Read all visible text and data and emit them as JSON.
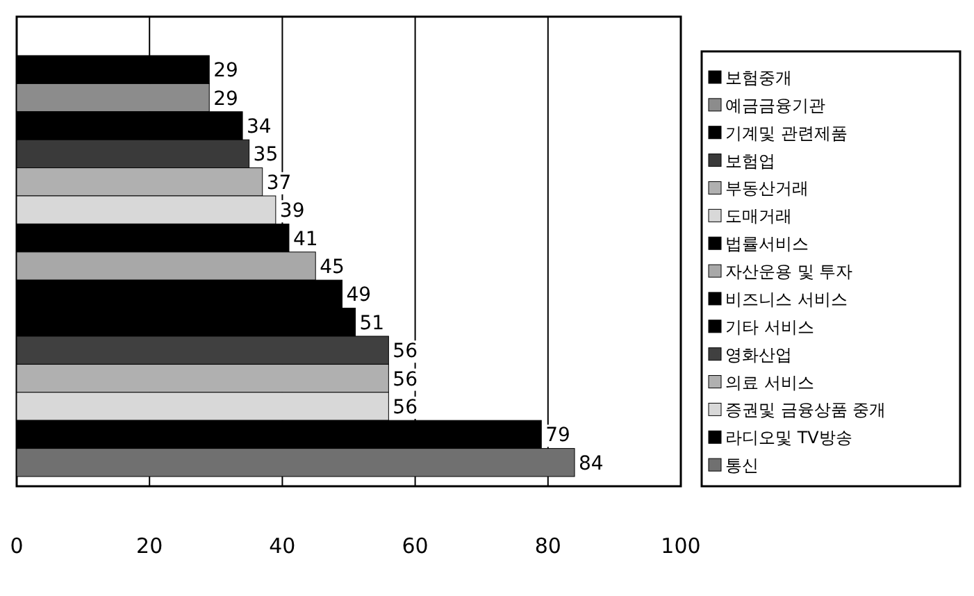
{
  "chart_data": {
    "type": "bar",
    "orientation": "horizontal",
    "categories": [
      null
    ],
    "series": [
      {
        "name": "보험중개",
        "color": "#000000",
        "values": [
          29
        ]
      },
      {
        "name": "예금금융기관",
        "color": "#8c8c8c",
        "values": [
          29
        ]
      },
      {
        "name": "기계및 관련제품",
        "color": "#000000",
        "values": [
          34
        ]
      },
      {
        "name": "보험업",
        "color": "#3a3a3a",
        "values": [
          35
        ]
      },
      {
        "name": "부동산거래",
        "color": "#b0b0b0",
        "values": [
          37
        ]
      },
      {
        "name": "도매거래",
        "color": "#d8d8d8",
        "values": [
          39
        ]
      },
      {
        "name": "법률서비스",
        "color": "#000000",
        "values": [
          41
        ]
      },
      {
        "name": "자산운용 및 투자",
        "color": "#a8a8a8",
        "values": [
          45
        ]
      },
      {
        "name": "비즈니스 서비스",
        "color": "#000000",
        "values": [
          49
        ]
      },
      {
        "name": "기타 서비스",
        "color": "#000000",
        "values": [
          51
        ]
      },
      {
        "name": "영화산업",
        "color": "#404040",
        "values": [
          56
        ]
      },
      {
        "name": "의료 서비스",
        "color": "#b0b0b0",
        "values": [
          56
        ]
      },
      {
        "name": "증권및 금융상품 중개",
        "color": "#d8d8d8",
        "values": [
          56
        ]
      },
      {
        "name": "라디오및 TV방송",
        "color": "#000000",
        "values": [
          79
        ]
      },
      {
        "name": "통신",
        "color": "#707070",
        "values": [
          84
        ]
      }
    ],
    "xlim": [
      0,
      100
    ],
    "xticks": [
      0,
      20,
      40,
      60,
      80,
      100
    ],
    "grid": "x",
    "legend": "right",
    "data_labels": true
  }
}
